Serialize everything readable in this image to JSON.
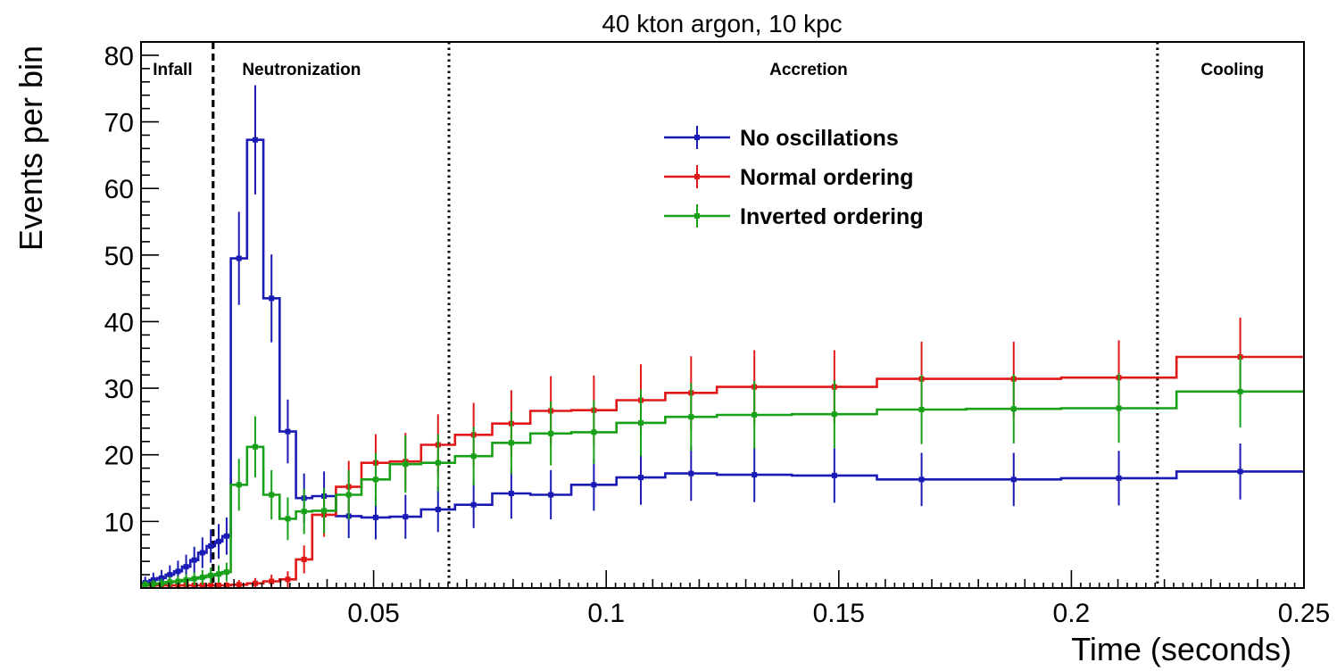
{
  "chart_data": {
    "type": "line",
    "title": "40 kton argon, 10 kpc",
    "xlabel": "Time (seconds)",
    "ylabel": "Events per bin",
    "xlim": [
      0,
      0.25
    ],
    "ylim": [
      0,
      82
    ],
    "x_ticks": [
      0.05,
      0.1,
      0.15,
      0.2,
      0.25
    ],
    "x_tick_labels": [
      "0.05",
      "0.1",
      "0.15",
      "0.2",
      "0.25"
    ],
    "y_ticks": [
      10,
      20,
      30,
      40,
      50,
      60,
      70,
      80
    ],
    "y_tick_labels": [
      "10",
      "20",
      "30",
      "40",
      "50",
      "60",
      "70",
      "80"
    ],
    "grid": false,
    "legend_position": "top-center",
    "phase_boundaries": [
      {
        "x": 0.0155,
        "style": "dashed"
      },
      {
        "x": 0.0662,
        "style": "dotted"
      },
      {
        "x": 0.2185,
        "style": "dotted"
      }
    ],
    "phases": [
      {
        "label": "Infall",
        "x": 0.0068
      },
      {
        "label": "Neutronization",
        "x": 0.0345
      },
      {
        "label": "Accretion",
        "x": 0.1435
      },
      {
        "label": "Cooling",
        "x": 0.2346
      }
    ],
    "bin_edges": [
      0,
      0.0018,
      0.0035,
      0.0053,
      0.0071,
      0.0088,
      0.0106,
      0.0123,
      0.0141,
      0.0159,
      0.0175,
      0.0193,
      0.0228,
      0.0263,
      0.0298,
      0.0333,
      0.0368,
      0.0419,
      0.0474,
      0.0535,
      0.0602,
      0.0675,
      0.0755,
      0.0837,
      0.0925,
      0.1022,
      0.1127,
      0.1238,
      0.1399,
      0.1582,
      0.1774,
      0.1978,
      0.2226,
      0.25
    ],
    "series": [
      {
        "name": "No oscillations",
        "color": "#1a1ab4",
        "values": [
          0.8,
          1.2,
          1.5,
          2.0,
          2.5,
          3.2,
          4.2,
          5.3,
          6.3,
          7.0,
          7.8,
          49.5,
          67.3,
          43.5,
          23.5,
          13.5,
          13.8,
          10.8,
          10.6,
          10.7,
          11.8,
          12.5,
          14.2,
          14.0,
          15.5,
          16.6,
          17.2,
          17.0,
          16.9,
          16.3,
          16.3,
          16.5,
          17.5
        ],
        "errors": [
          0.9,
          1.1,
          1.2,
          1.4,
          1.6,
          1.8,
          2.0,
          2.3,
          2.5,
          2.6,
          2.8,
          7.0,
          8.2,
          6.6,
          4.8,
          3.7,
          3.7,
          3.3,
          3.3,
          3.3,
          3.4,
          3.5,
          3.8,
          3.7,
          3.9,
          4.1,
          4.1,
          4.1,
          4.1,
          4.0,
          4.0,
          4.1,
          4.2
        ]
      },
      {
        "name": "Normal ordering",
        "color": "#e01818",
        "values": [
          0.4,
          0.4,
          0.4,
          0.4,
          0.4,
          0.4,
          0.4,
          0.4,
          0.4,
          0.4,
          0.4,
          0.5,
          0.7,
          1.0,
          1.3,
          4.3,
          11.0,
          15.2,
          18.8,
          19.0,
          21.5,
          23.0,
          24.7,
          26.6,
          26.7,
          28.2,
          29.3,
          30.2,
          30.2,
          31.4,
          31.4,
          31.6,
          34.7
        ],
        "errors": [
          0.5,
          0.5,
          0.5,
          0.5,
          0.5,
          0.5,
          0.5,
          0.5,
          0.5,
          0.5,
          0.5,
          0.7,
          0.8,
          1.0,
          1.2,
          2.1,
          3.3,
          3.9,
          4.3,
          4.3,
          4.6,
          4.8,
          5.0,
          5.2,
          5.2,
          5.4,
          5.5,
          5.5,
          5.5,
          5.6,
          5.6,
          5.6,
          5.9
        ]
      },
      {
        "name": "Inverted ordering",
        "color": "#18a018",
        "values": [
          0.5,
          0.6,
          0.7,
          0.9,
          1.0,
          1.2,
          1.4,
          1.6,
          1.9,
          2.1,
          2.4,
          15.5,
          21.2,
          14.0,
          10.4,
          11.5,
          11.6,
          14.0,
          16.3,
          18.6,
          18.8,
          19.8,
          21.8,
          23.2,
          23.4,
          24.8,
          25.7,
          26.0,
          26.1,
          26.8,
          26.9,
          27.0,
          29.5
        ],
        "errors": [
          0.6,
          0.6,
          0.7,
          0.8,
          0.8,
          0.9,
          1.0,
          1.1,
          1.2,
          1.3,
          1.4,
          3.9,
          4.6,
          3.7,
          3.2,
          3.4,
          3.4,
          3.7,
          4.0,
          4.3,
          4.3,
          4.4,
          4.7,
          4.8,
          4.8,
          5.0,
          5.1,
          5.1,
          5.1,
          5.2,
          5.2,
          5.2,
          5.4
        ]
      }
    ]
  }
}
